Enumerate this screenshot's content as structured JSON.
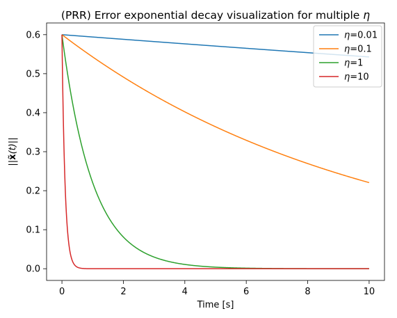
{
  "chart_data": {
    "type": "line",
    "title": "(PRR) Error exponential decay visualization for multiple η",
    "title_prefix": "(PRR) Error exponential decay visualization for multiple ",
    "title_symbol": "η",
    "xlabel": "Time [s]",
    "ylabel_parts": {
      "left_bars": "||",
      "symbol": "x̃",
      "arg": "(t)",
      "right_bars": "||"
    },
    "xlim": [
      -0.5,
      10.5
    ],
    "ylim": [
      -0.03,
      0.63
    ],
    "x_ticks": [
      0,
      2,
      4,
      6,
      8,
      10
    ],
    "x_tick_labels": [
      "0",
      "2",
      "4",
      "6",
      "8",
      "10"
    ],
    "y_ticks": [
      0.0,
      0.1,
      0.2,
      0.3,
      0.4,
      0.5,
      0.6
    ],
    "y_tick_labels": [
      "0.0",
      "0.1",
      "0.2",
      "0.3",
      "0.4",
      "0.5",
      "0.6"
    ],
    "grid": false,
    "legend_position": "upper right",
    "x_range": [
      0,
      10
    ],
    "initial_value": 0.6,
    "series": [
      {
        "name": "η=0.01",
        "eta": 0.01,
        "color": "#1f77b4"
      },
      {
        "name": "η=0.1",
        "eta": 0.1,
        "color": "#ff7f0e"
      },
      {
        "name": "η=1",
        "eta": 1,
        "color": "#2ca02c"
      },
      {
        "name": "η=10",
        "eta": 10,
        "color": "#d62728"
      }
    ]
  }
}
